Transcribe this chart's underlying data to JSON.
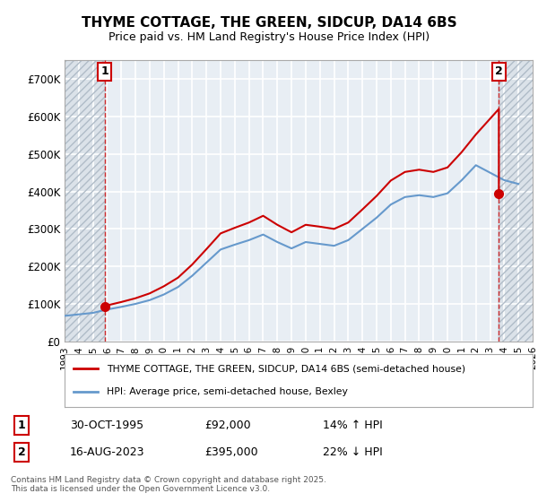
{
  "title": "THYME COTTAGE, THE GREEN, SIDCUP, DA14 6BS",
  "subtitle": "Price paid vs. HM Land Registry's House Price Index (HPI)",
  "legend_line1": "THYME COTTAGE, THE GREEN, SIDCUP, DA14 6BS (semi-detached house)",
  "legend_line2": "HPI: Average price, semi-detached house, Bexley",
  "annotation1_label": "1",
  "annotation1_date": "30-OCT-1995",
  "annotation1_price": "£92,000",
  "annotation1_hpi": "14% ↑ HPI",
  "annotation2_label": "2",
  "annotation2_date": "16-AUG-2023",
  "annotation2_price": "£395,000",
  "annotation2_hpi": "22% ↓ HPI",
  "footer": "Contains HM Land Registry data © Crown copyright and database right 2025.\nThis data is licensed under the Open Government Licence v3.0.",
  "red_color": "#cc0000",
  "blue_color": "#6699cc",
  "background_color": "#f0f4f8",
  "plot_bg_color": "#e8eef4",
  "grid_color": "#ffffff",
  "hatch_color": "#d0d8e0",
  "ylim": [
    0,
    750000
  ],
  "yticks": [
    0,
    100000,
    200000,
    300000,
    400000,
    500000,
    600000,
    700000
  ],
  "ytick_labels": [
    "£0",
    "£100K",
    "£200K",
    "£300K",
    "£400K",
    "£500K",
    "£600K",
    "£700K"
  ],
  "sale1_year": 1995.83,
  "sale1_price": 92000,
  "sale2_year": 2023.62,
  "sale2_price": 395000,
  "hpi_years": [
    1993,
    1994,
    1995,
    1996,
    1997,
    1998,
    1999,
    2000,
    2001,
    2002,
    2003,
    2004,
    2005,
    2006,
    2007,
    2008,
    2009,
    2010,
    2011,
    2012,
    2013,
    2014,
    2015,
    2016,
    2017,
    2018,
    2019,
    2020,
    2021,
    2022,
    2023,
    2024,
    2025
  ],
  "hpi_values": [
    68000,
    72000,
    76000,
    85000,
    92000,
    100000,
    110000,
    125000,
    145000,
    175000,
    210000,
    245000,
    258000,
    270000,
    285000,
    265000,
    248000,
    265000,
    260000,
    255000,
    270000,
    300000,
    330000,
    365000,
    385000,
    390000,
    385000,
    395000,
    430000,
    470000,
    450000,
    430000,
    420000
  ],
  "price_paid_years": [
    1995.83,
    1995.83,
    1996,
    1997,
    1998,
    1999,
    2000,
    2001,
    2002,
    2003,
    2004,
    2005,
    2006,
    2007,
    2008,
    2009,
    2010,
    2011,
    2012,
    2013,
    2014,
    2015,
    2016,
    2017,
    2018,
    2019,
    2020,
    2021,
    2022,
    2023.62,
    2023.62
  ],
  "price_paid_values": [
    92000,
    92000,
    96000,
    105000,
    115000,
    128000,
    147000,
    170000,
    205000,
    246000,
    288000,
    303000,
    317000,
    335000,
    311000,
    291000,
    311000,
    306000,
    300000,
    317000,
    352000,
    388000,
    429000,
    452000,
    458000,
    452000,
    464000,
    505000,
    552000,
    620000,
    395000
  ]
}
